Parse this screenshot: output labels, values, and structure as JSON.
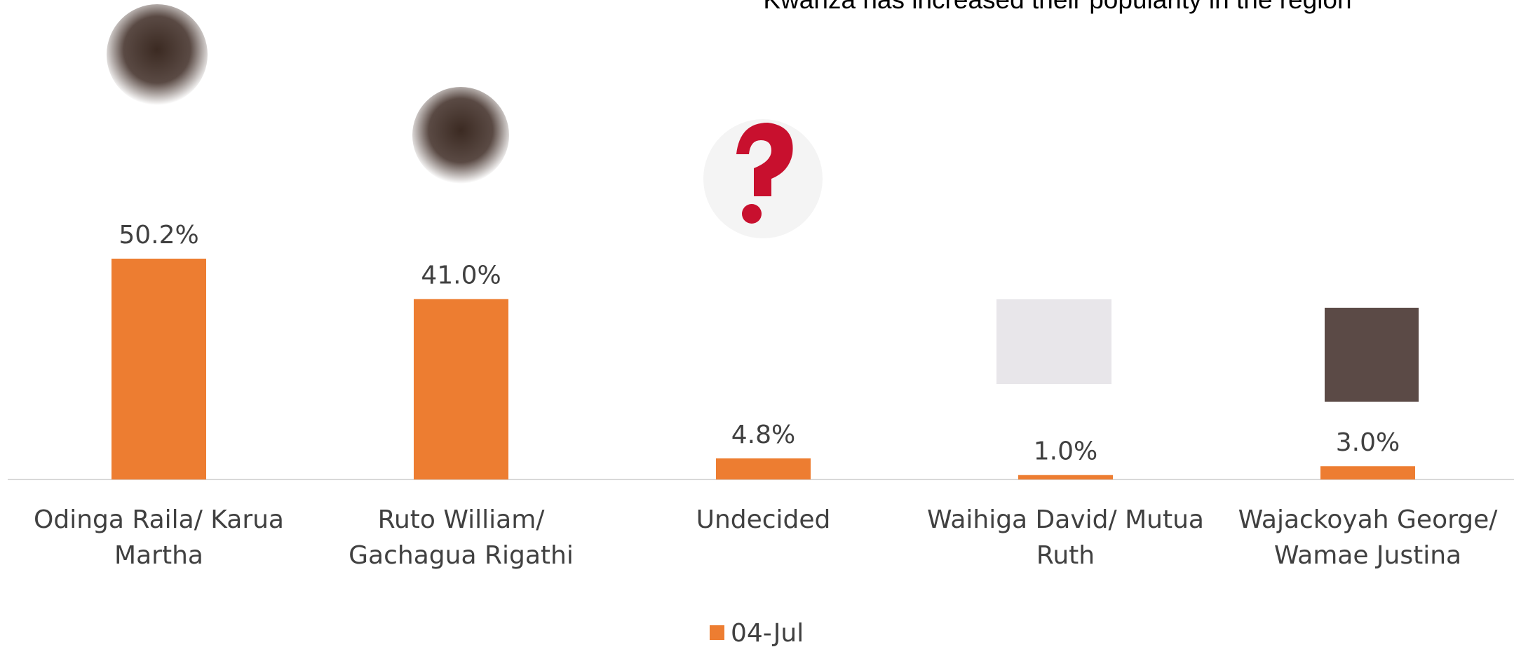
{
  "chart_data": {
    "type": "bar",
    "title": "Kwanza has increased their popularity in the region",
    "categories": [
      "Odinga Raila/ Karua Martha",
      "Ruto William/ Gachagua Rigathi",
      "Undecided",
      "Waihiga David/ Mutua Ruth",
      "Wajackoyah George/ Wamae Justina"
    ],
    "series": [
      {
        "name": "04-Jul",
        "color": "#ed7d31",
        "values": [
          50.2,
          41.0,
          4.8,
          1.0,
          3.0
        ],
        "value_labels": [
          "50.2%",
          "41.0%",
          "4.8%",
          "1.0%",
          "3.0%"
        ]
      }
    ],
    "legend": "bottom"
  }
}
